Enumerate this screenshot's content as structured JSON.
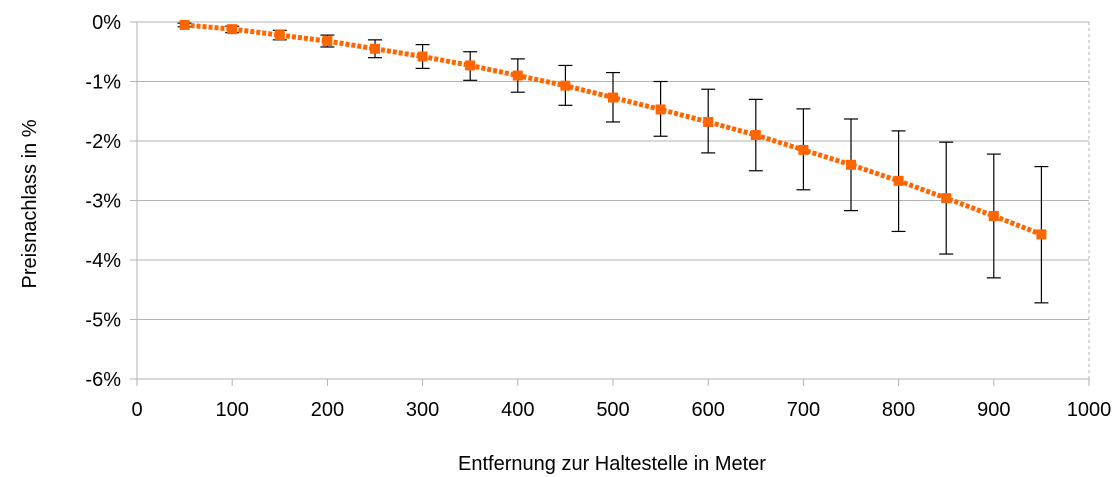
{
  "chart_data": {
    "type": "line",
    "xlabel": "Entfernung zur Haltestelle in Meter",
    "ylabel": "Preisnachlass in %",
    "xlim": [
      0,
      1000
    ],
    "ylim": [
      -6,
      0
    ],
    "x_ticks": [
      "0",
      "100",
      "200",
      "300",
      "400",
      "500",
      "600",
      "700",
      "800",
      "900",
      "1000"
    ],
    "y_ticks": [
      "0%",
      "-1%",
      "-2%",
      "-3%",
      "-4%",
      "-5%",
      "-6%"
    ],
    "grid": "horizontal",
    "colors": {
      "series": "#ff6600",
      "error_bars": "#000000",
      "grid": "#b3b3b3"
    },
    "series": [
      {
        "x": [
          50,
          100,
          150,
          200,
          250,
          300,
          350,
          400,
          450,
          500,
          550,
          600,
          650,
          700,
          750,
          800,
          850,
          900,
          950
        ],
        "y": [
          -0.05,
          -0.12,
          -0.22,
          -0.32,
          -0.45,
          -0.58,
          -0.73,
          -0.9,
          -1.07,
          -1.27,
          -1.47,
          -1.68,
          -1.9,
          -2.15,
          -2.4,
          -2.67,
          -2.96,
          -3.26,
          -3.57
        ],
        "err_low": [
          -0.08,
          -0.18,
          -0.3,
          -0.42,
          -0.6,
          -0.78,
          -0.98,
          -1.18,
          -1.4,
          -1.68,
          -1.92,
          -2.2,
          -2.5,
          -2.82,
          -3.17,
          -3.52,
          -3.9,
          -4.3,
          -4.72
        ],
        "err_high": [
          -0.02,
          -0.07,
          -0.14,
          -0.22,
          -0.3,
          -0.38,
          -0.5,
          -0.62,
          -0.73,
          -0.85,
          -1.0,
          -1.13,
          -1.3,
          -1.46,
          -1.63,
          -1.83,
          -2.02,
          -2.22,
          -2.43
        ]
      }
    ]
  }
}
